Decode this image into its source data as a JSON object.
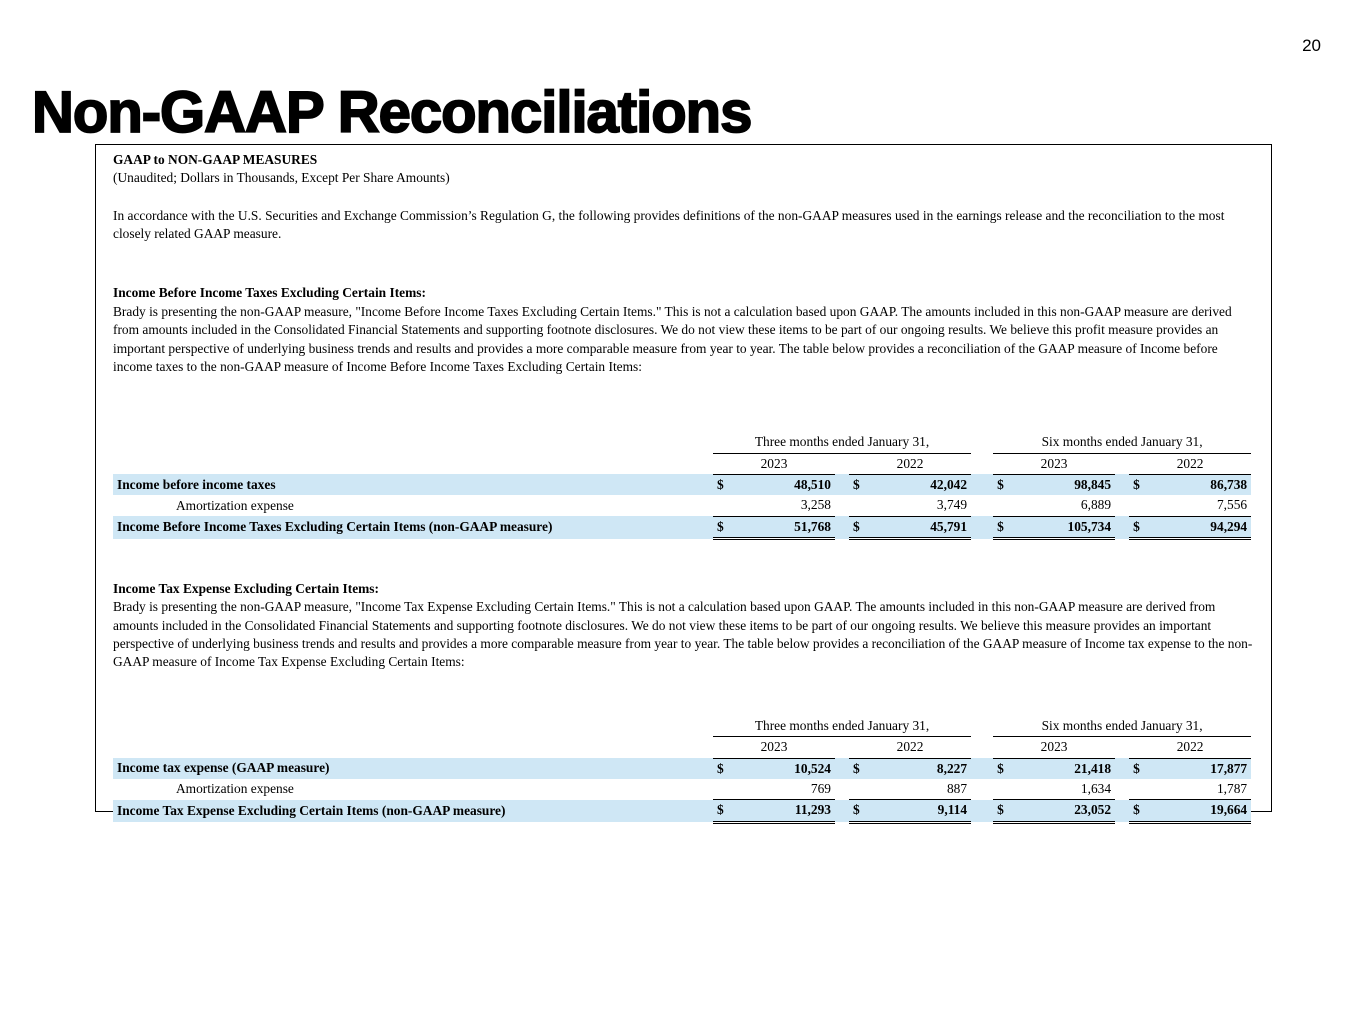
{
  "page_number": "20",
  "title": "Non-GAAP Reconciliations",
  "currency": "$",
  "box": {
    "heading": "GAAP to NON-GAAP MEASURES",
    "subheading": "(Unaudited; Dollars in Thousands, Except Per Share Amounts)",
    "intro": "In accordance with the U.S. Securities and Exchange Commission’s Regulation G, the following provides definitions of the non-GAAP measures used in the earnings release and the reconciliation to the most closely related GAAP measure."
  },
  "highlight_color": "#cfe7f5",
  "sections": [
    {
      "title": "Income Before Income Taxes Excluding Certain Items:",
      "body": "Brady is presenting the non-GAAP measure, \"Income Before Income Taxes Excluding Certain Items.\"  This is not a calculation based upon GAAP.  The amounts included in this non-GAAP measure are derived from amounts included in the Consolidated Financial Statements and supporting footnote disclosures.  We do not view these items to be part of our ongoing results.  We believe this profit measure provides an important perspective of underlying business trends and results and provides a more comparable measure from year to year.  The table below provides a reconciliation of the GAAP measure of Income before income taxes to the non-GAAP measure of Income Before Income Taxes Excluding Certain Items:",
      "table": {
        "period_headers": [
          "Three months ended January 31,",
          "Six months ended January 31,"
        ],
        "years": [
          "2023",
          "2022",
          "2023",
          "2022"
        ],
        "rows": [
          {
            "label": "Income before income taxes",
            "values": [
              "48,510",
              "42,042",
              "98,845",
              "86,738"
            ]
          },
          {
            "label": "Amortization expense",
            "values": [
              "3,258",
              "3,749",
              "6,889",
              "7,556"
            ]
          },
          {
            "label": "Income Before Income Taxes Excluding Certain Items (non-GAAP measure)",
            "values": [
              "51,768",
              "45,791",
              "105,734",
              "94,294"
            ]
          }
        ]
      }
    },
    {
      "title": "Income Tax Expense Excluding Certain Items:",
      "body": "Brady is presenting the non-GAAP measure, \"Income Tax Expense Excluding Certain Items.\"  This is not a calculation based upon GAAP.  The amounts included in this non-GAAP measure are derived from amounts included in the Consolidated Financial Statements and supporting footnote disclosures.  We do not view these items to be part of our ongoing results.  We believe this measure provides an important perspective of underlying business trends and results and provides a more comparable measure from year to year.  The table below provides a reconciliation of the GAAP measure of Income tax expense to the non-GAAP measure of Income Tax Expense Excluding Certain Items:",
      "table": {
        "period_headers": [
          "Three months ended January 31,",
          "Six months ended January 31,"
        ],
        "years": [
          "2023",
          "2022",
          "2023",
          "2022"
        ],
        "rows": [
          {
            "label": "Income tax expense (GAAP measure)",
            "values": [
              "10,524",
              "8,227",
              "21,418",
              "17,877"
            ]
          },
          {
            "label": "Amortization expense",
            "values": [
              "769",
              "887",
              "1,634",
              "1,787"
            ]
          },
          {
            "label": "Income Tax Expense Excluding Certain Items (non-GAAP measure)",
            "values": [
              "11,293",
              "9,114",
              "23,052",
              "19,664"
            ]
          }
        ]
      }
    }
  ]
}
